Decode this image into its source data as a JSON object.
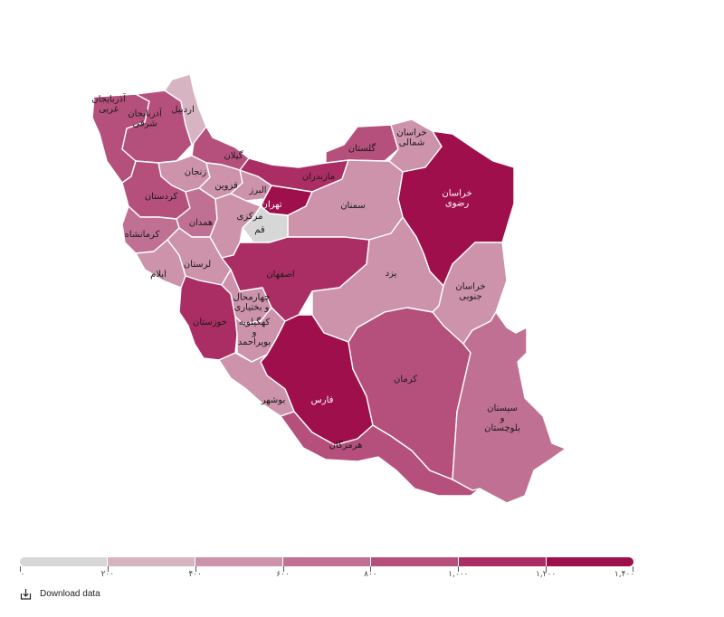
{
  "colors": {
    "scale": [
      "#d7d7d7",
      "#d6b4c2",
      "#cc93ab",
      "#c07193",
      "#b5507c",
      "#aa2e64",
      "#9e0f4c"
    ],
    "border": "#ffffff"
  },
  "provinces": [
    {
      "id": "west-azerbaijan",
      "label": "آذربایجان\nغربی",
      "value": 900
    },
    {
      "id": "east-azerbaijan",
      "label": "آذربایجان\nشرقی",
      "value": 950
    },
    {
      "id": "ardabil",
      "label": "اردبیل",
      "value": 350
    },
    {
      "id": "gilan",
      "label": "گیلان",
      "value": 850
    },
    {
      "id": "zanjan",
      "label": "زنجان",
      "value": 500
    },
    {
      "id": "qazvin",
      "label": "قزوین",
      "value": 450
    },
    {
      "id": "alborz",
      "label": "البرز",
      "value": 550
    },
    {
      "id": "tehran",
      "label": "تهران",
      "value": 1300
    },
    {
      "id": "mazandaran",
      "label": "مازندران",
      "value": 1150
    },
    {
      "id": "golestan",
      "label": "گلستان",
      "value": 900
    },
    {
      "id": "north-khorasan",
      "label": "خراسان\nشمالی",
      "value": 400
    },
    {
      "id": "razavi-khorasan",
      "label": "خراسان\nرضوی",
      "value": 1320
    },
    {
      "id": "semnan",
      "label": "سمنان",
      "value": 500
    },
    {
      "id": "kurdistan",
      "label": "کردستان",
      "value": 800
    },
    {
      "id": "hamadan",
      "label": "همدان",
      "value": 600
    },
    {
      "id": "markazi",
      "label": "مرکزی",
      "value": 450
    },
    {
      "id": "qom",
      "label": "قم",
      "value": 180
    },
    {
      "id": "kermanshah",
      "label": "کرمانشاه",
      "value": 750
    },
    {
      "id": "ilam",
      "label": "ایلام",
      "value": 450
    },
    {
      "id": "lorestan",
      "label": "لرستان",
      "value": 500
    },
    {
      "id": "isfahan",
      "label": "اصفهان",
      "value": 1150
    },
    {
      "id": "yazd",
      "label": "یزد",
      "value": 500
    },
    {
      "id": "south-khorasan",
      "label": "خراسان\nجنوبی",
      "value": 450
    },
    {
      "id": "khuzestan",
      "label": "خوزستان",
      "value": 1050
    },
    {
      "id": "chaharmahal",
      "label": "چهارمحال\nو بختیاری",
      "value": 450
    },
    {
      "id": "kohgiluyeh",
      "label": "کهگیلویه\nو\nبویراحمد",
      "value": 450
    },
    {
      "id": "fars",
      "label": "فارس",
      "value": 1250
    },
    {
      "id": "bushehr",
      "label": "بوشهر",
      "value": 550
    },
    {
      "id": "hormozgan",
      "label": "هرمزگان",
      "value": 800
    },
    {
      "id": "kerman",
      "label": "کرمان",
      "value": 850
    },
    {
      "id": "sistan",
      "label": "سیستان\nو\nبلوچستان",
      "value": 700
    }
  ],
  "legend": {
    "labels": [
      "۰",
      "۲۰۰",
      "۴۰۰",
      "۶۰۰",
      "۸۰۰",
      "۱,۰۰۰",
      "۱,۲۰۰",
      "۱,۴۰۰"
    ],
    "breaks": [
      0,
      200,
      400,
      600,
      800,
      1000,
      1200,
      1400
    ]
  },
  "download": {
    "label": "Download data",
    "icon": "download-icon"
  }
}
